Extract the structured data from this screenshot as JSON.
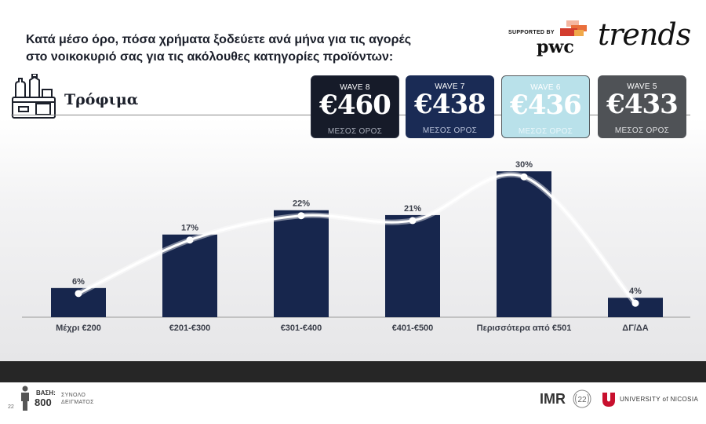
{
  "title": {
    "line1": "Κατά μέσο όρο, πόσα χρήματα ξοδεύετε ανά μήνα για τις αγορές",
    "line2": "στο νοικοκυριό σας για τις ακόλουθες κατηγορίες προϊόντων:"
  },
  "branding": {
    "supported_by": "SUPPORTED BY",
    "pwc": "pwc",
    "trends": "trends"
  },
  "category": {
    "label": "Τρόφιμα",
    "icon": "grocery-basket-icon"
  },
  "waves": [
    {
      "label": "WAVE 8",
      "value": "€460",
      "sub": "ΜΕΣΟΣ ΟΡΟΣ",
      "color": "#161b29"
    },
    {
      "label": "WAVE 7",
      "value": "€438",
      "sub": "ΜΕΣΟΣ ΟΡΟΣ",
      "color": "#1a2b55"
    },
    {
      "label": "WAVE 6",
      "value": "€436",
      "sub": "ΜΕΣΟΣ ΟΡΟΣ",
      "color": "#b9e1ea"
    },
    {
      "label": "WAVE 5",
      "value": "€433",
      "sub": "ΜΕΣΟΣ ΟΡΟΣ",
      "color": "#4f5256"
    }
  ],
  "chart_data": {
    "type": "bar",
    "categories": [
      "Μέχρι €200",
      "€201-€300",
      "€301-€400",
      "€401-€500",
      "Περισσότερα από €501",
      "ΔΓ/ΔΑ"
    ],
    "values": [
      6,
      17,
      22,
      21,
      30,
      4
    ],
    "value_suffix": "%",
    "ylim": [
      0,
      31
    ],
    "bar_color": "#17264d",
    "trend_line_color": "#ffffff",
    "grid": false,
    "legend": "none"
  },
  "footer": {
    "page_number": "22",
    "base_label": "ΒΑΣΗ:",
    "base_value": "800",
    "sample_line1": "ΣΥΝΟΛΟ",
    "sample_line2": "ΔΕΙΓΜΑΤΟΣ",
    "university": "UNIVERSITY of NICOSIA",
    "imr": "IMR"
  }
}
